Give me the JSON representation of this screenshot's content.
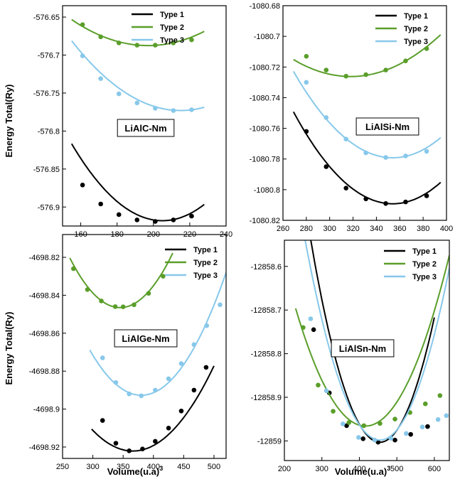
{
  "figure": {
    "ylabel": "Energy Total(Ry)",
    "xlabel": "Volume(u.a)",
    "xlabel_superscript": "3"
  },
  "chart_data": [
    {
      "type": "line",
      "label": "LiAlC-Nm",
      "xlim": [
        150,
        240
      ],
      "ylim": [
        -576.925,
        -576.635
      ],
      "xticks": [
        160,
        180,
        200,
        220,
        240
      ],
      "xtick_labels": [
        "160",
        "180",
        "200",
        "220",
        "240"
      ],
      "yticks": [
        -576.65,
        -576.7,
        -576.75,
        -576.8,
        -576.85,
        -576.9
      ],
      "ytick_labels": [
        "-576.65",
        "-576.7",
        "-576.75",
        "-576.8",
        "-576.85",
        "-576.9"
      ],
      "series": [
        {
          "name": "Type 1",
          "color": "#000000",
          "x": [
            161,
            171,
            181,
            191,
            201,
            211,
            221
          ],
          "y": [
            -576.871,
            -576.896,
            -576.91,
            -576.917,
            -576.919,
            -576.917,
            -576.912
          ],
          "fit": [
            4.05e-05,
            -576.918,
            205
          ],
          "range": [
            155,
            228
          ]
        },
        {
          "name": "Type 2",
          "color": "#5a9e2a",
          "x": [
            161,
            171,
            181,
            191,
            201,
            211,
            221
          ],
          "y": [
            -576.66,
            -576.676,
            -576.684,
            -576.687,
            -576.687,
            -576.684,
            -576.68
          ],
          "fit": [
            1.94e-05,
            -576.6875,
            197
          ],
          "range": [
            155,
            228
          ]
        },
        {
          "name": "Type 3",
          "color": "#87c8ea",
          "x": [
            161,
            171,
            181,
            191,
            201,
            211,
            221
          ],
          "y": [
            -576.701,
            -576.731,
            -576.751,
            -576.763,
            -576.77,
            -576.773,
            -576.772
          ],
          "fit": [
            2.55e-05,
            -576.773,
            215
          ],
          "range": [
            155,
            228
          ]
        }
      ]
    },
    {
      "type": "line",
      "label": "LiAlSi-Nm",
      "xlim": [
        260,
        400
      ],
      "ylim": [
        -1080.82,
        -1080.68
      ],
      "xticks": [
        260,
        280,
        300,
        320,
        340,
        360,
        380,
        400
      ],
      "xtick_labels": [
        "260",
        "280",
        "300",
        "320",
        "340",
        "360",
        "380",
        "400"
      ],
      "yticks": [
        -1080.68,
        -1080.7,
        -1080.72,
        -1080.74,
        -1080.76,
        -1080.78,
        -1080.8,
        -1080.82
      ],
      "ytick_labels": [
        "-1080.68",
        "-1080.7",
        "-1080.72",
        "-1080.74",
        "-1080.76",
        "-1080.78",
        "-1080.8",
        "-1080.82"
      ],
      "series": [
        {
          "name": "Type 1",
          "color": "#000000",
          "x": [
            280,
            297,
            314,
            331,
            348,
            365,
            383
          ],
          "y": [
            -1080.762,
            -1080.785,
            -1080.799,
            -1080.806,
            -1080.809,
            -1080.808,
            -1080.804
          ],
          "fit": [
            8.3e-06,
            -1080.8092,
            354
          ],
          "range": [
            269,
            395
          ]
        },
        {
          "name": "Type 2",
          "color": "#5a9e2a",
          "x": [
            280,
            297,
            314,
            331,
            348,
            365,
            383
          ],
          "y": [
            -1080.713,
            -1080.722,
            -1080.726,
            -1080.725,
            -1080.722,
            -1080.716,
            -1080.708
          ],
          "fit": [
            4.6e-06,
            -1080.7262,
            318
          ],
          "range": [
            269,
            395
          ]
        },
        {
          "name": "Type 3",
          "color": "#87c8ea",
          "x": [
            280,
            297,
            314,
            331,
            348,
            365,
            383
          ],
          "y": [
            -1080.73,
            -1080.753,
            -1080.767,
            -1080.776,
            -1080.779,
            -1080.778,
            -1080.775
          ],
          "fit": [
            7.8e-06,
            -1080.7792,
            354
          ],
          "range": [
            269,
            395
          ]
        }
      ]
    },
    {
      "type": "line",
      "label": "LiAlGe-Nm",
      "xlim": [
        250,
        520
      ],
      "ylim": [
        -4698.926,
        -4698.808
      ],
      "xticks": [
        250,
        300,
        350,
        400,
        450,
        500
      ],
      "xtick_labels": [
        "250",
        "300",
        "350",
        "400",
        "450",
        "500"
      ],
      "yticks": [
        -4698.82,
        -4698.84,
        -4698.86,
        -4698.88,
        -4698.9,
        -4698.92
      ],
      "ytick_labels": [
        "-4698.82",
        "-4698.84",
        "-4698.86",
        "-4698.88",
        "-4698.9",
        "-4698.92"
      ],
      "series": [
        {
          "name": "Type 1",
          "color": "#000000",
          "x": [
            316,
            338,
            360,
            382,
            403,
            425,
            446,
            467,
            487
          ],
          "y": [
            -4698.906,
            -4698.918,
            -4698.922,
            -4698.921,
            -4698.917,
            -4698.91,
            -4698.901,
            -4698.89,
            -4698.878
          ],
          "fit": [
            2.5e-06,
            -4698.9221,
            366
          ],
          "range": [
            298,
            500
          ]
        },
        {
          "name": "Type 2",
          "color": "#5a9e2a",
          "x": [
            268,
            291,
            314,
            337,
            350,
            368,
            392,
            416
          ],
          "y": [
            -4698.826,
            -4698.837,
            -4698.843,
            -4698.846,
            -4698.8461,
            -4698.845,
            -4698.839,
            -4698.83
          ],
          "fit": [
            3.8e-06,
            -4698.8465,
            345
          ],
          "range": [
            262,
            432
          ]
        },
        {
          "name": "Type 3",
          "color": "#87c8ea",
          "x": [
            316,
            338,
            360,
            380,
            403,
            425,
            446,
            467,
            488,
            510
          ],
          "y": [
            -4698.873,
            -4698.886,
            -4698.892,
            -4698.893,
            -4698.89,
            -4698.884,
            -4698.876,
            -4698.866,
            -4698.856,
            -4698.845
          ],
          "fit": [
            3.3e-06,
            -4698.8927,
            380
          ],
          "range": [
            295,
            520
          ]
        }
      ]
    },
    {
      "type": "line",
      "label": "LiAlSn-Nm",
      "xlim": [
        200,
        640
      ],
      "ylim": [
        -12859.045,
        -12858.54
      ],
      "xticks": [
        200,
        300,
        400,
        500,
        600
      ],
      "xtick_labels": [
        "200",
        "300",
        "400",
        "500",
        "600"
      ],
      "yticks": [
        -12858.6,
        -12858.7,
        -12858.8,
        -12858.9,
        -12859
      ],
      "ytick_labels": [
        "-12858.6",
        "-12858.7",
        "-12858.8",
        "-12858.9",
        "-12859"
      ],
      "series": [
        {
          "name": "Type 1",
          "color": "#000000",
          "x": [
            278,
            320,
            366,
            410,
            450,
            495,
            537,
            582
          ],
          "y": [
            -12858.745,
            -12858.89,
            -12858.965,
            -12858.995,
            -12859.003,
            -12858.998,
            -12858.985,
            -12858.967
          ],
          "fit": [
            1.36e-05,
            -12859.003,
            455
          ],
          "range": [
            240,
            600
          ]
        },
        {
          "name": "Type 2",
          "color": "#5a9e2a",
          "x": [
            250,
            290,
            330,
            372,
            412,
            455,
            495,
            535,
            576,
            615
          ],
          "y": [
            -12858.74,
            -12858.872,
            -12858.932,
            -12858.958,
            -12858.965,
            -12858.96,
            -12858.95,
            -12858.935,
            -12858.915,
            -12858.896
          ],
          "fit": [
            7.8e-06,
            -12858.966,
            416
          ],
          "range": [
            230,
            640
          ]
        },
        {
          "name": "Type 3",
          "color": "#87c8ea",
          "x": [
            270,
            312,
            356,
            398,
            441,
            484,
            525,
            568,
            610,
            632
          ],
          "y": [
            -12858.72,
            -12858.885,
            -12858.961,
            -12858.992,
            -12858.998,
            -12858.994,
            -12858.983,
            -12858.968,
            -12858.951,
            -12858.942
          ],
          "fit": [
            1.15e-05,
            -12858.998,
            455
          ],
          "range": [
            240,
            640
          ]
        }
      ]
    }
  ]
}
